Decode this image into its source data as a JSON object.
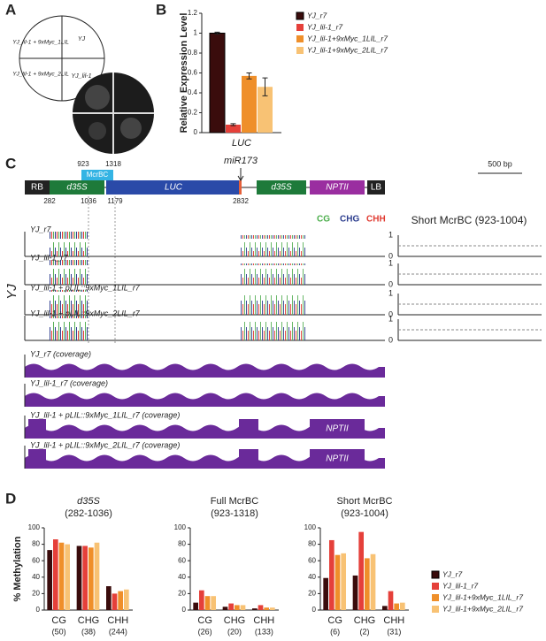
{
  "panels": [
    "A",
    "B",
    "C",
    "D"
  ],
  "panel_a": {
    "quadrants": [
      "YJ_lil-1 + 9xMyc_1LIL",
      "YJ",
      "YJ_lil-1 + 9xMyc_2LIL",
      "YJ_lil-1"
    ]
  },
  "panel_c": {
    "construct": {
      "elements": [
        "RB",
        "d35S",
        "LUC",
        "d35S",
        "NPTII",
        "LB"
      ],
      "mcrbc": "McrBC",
      "positions": [
        "923",
        "1318",
        "282",
        "1036",
        "1179",
        "2832"
      ],
      "mirna": "miR173",
      "scale": "500 bp"
    },
    "contexts": [
      "CG",
      "CHG",
      "CHH"
    ],
    "y_label": "YJ",
    "tracks": [
      "YJ_r7",
      "YJ_lil-1_r7",
      "YJ_lil-1 + pLIL::9xMyc_1LIL_r7",
      "YJ_lil-1 + pLIL::9xMyc_2LIL_r7"
    ],
    "coverage_tracks": [
      "YJ_r7 (coverage)",
      "YJ_lil-1_r7 (coverage)",
      "YJ_lil-1 + pLIL::9xMyc_1LIL_r7 (coverage)",
      "YJ_lil-1 + pLIL::9xMyc_2LIL_r7 (coverage)"
    ],
    "nptii": "NPTII",
    "short": {
      "title": "Short McrBC (923-1004)",
      "ticks": [
        "0",
        "1"
      ]
    }
  },
  "chart_data": [
    {
      "type": "bar",
      "y_label": "Relative Expression Level",
      "categories": [
        "LUC"
      ],
      "legend": "right",
      "ylim": [
        0,
        1.2
      ],
      "yticks": [
        0,
        0.2,
        0.4,
        0.6,
        0.8,
        1,
        1.2
      ],
      "series": [
        {
          "name": "YJ_r7",
          "color": "#3a0c0c",
          "values": [
            1.0
          ],
          "errors": [
            0.01
          ]
        },
        {
          "name": "YJ_lil-1_r7",
          "color": "#e5403a",
          "values": [
            0.08
          ],
          "errors": [
            0.01
          ]
        },
        {
          "name": "YJ_lil-1+9xMyc_1LIL_r7",
          "color": "#ef8f2a",
          "values": [
            0.57
          ],
          "errors": [
            0.03
          ]
        },
        {
          "name": "YJ_lil-1+9xMyc_2LIL_r7",
          "color": "#f8c274",
          "values": [
            0.46
          ],
          "errors": [
            0.09
          ]
        }
      ]
    },
    {
      "type": "bar",
      "title": "d35S",
      "subtitle": "(282-1036)",
      "y_label": "% Methylation",
      "categories": [
        "CG",
        "CHG",
        "CHH"
      ],
      "category_counts": [
        "(50)",
        "(38)",
        "(244)"
      ],
      "ylim": [
        0,
        100
      ],
      "yticks": [
        0,
        20,
        40,
        60,
        80,
        100
      ],
      "series": [
        {
          "name": "YJ_r7",
          "color": "#3a0c0c",
          "values": [
            73,
            78,
            29
          ]
        },
        {
          "name": "YJ_lil-1_r7",
          "color": "#e5403a",
          "values": [
            86,
            78,
            20
          ]
        },
        {
          "name": "YJ_lil-1+9xMyc_1LIL_r7",
          "color": "#ef8f2a",
          "values": [
            82,
            76,
            23
          ]
        },
        {
          "name": "YJ_lil-1+9xMyc_2LIL_r7",
          "color": "#f8c274",
          "values": [
            80,
            82,
            25
          ]
        }
      ]
    },
    {
      "type": "bar",
      "title": "Full McrBC",
      "subtitle": "(923-1318)",
      "categories": [
        "CG",
        "CHG",
        "CHH"
      ],
      "category_counts": [
        "(26)",
        "(20)",
        "(133)"
      ],
      "ylim": [
        0,
        100
      ],
      "yticks": [
        0,
        20,
        40,
        60,
        80,
        100
      ],
      "series": [
        {
          "name": "YJ_r7",
          "color": "#3a0c0c",
          "values": [
            9,
            4,
            2
          ]
        },
        {
          "name": "YJ_lil-1_r7",
          "color": "#e5403a",
          "values": [
            24,
            8,
            6
          ]
        },
        {
          "name": "YJ_lil-1+9xMyc_1LIL_r7",
          "color": "#ef8f2a",
          "values": [
            17,
            6,
            3
          ]
        },
        {
          "name": "YJ_lil-1+9xMyc_2LIL_r7",
          "color": "#f8c274",
          "values": [
            17,
            6,
            3
          ]
        }
      ]
    },
    {
      "type": "bar",
      "title": "Short McrBC",
      "subtitle": "(923-1004)",
      "legend": "right",
      "categories": [
        "CG",
        "CHG",
        "CHH"
      ],
      "category_counts": [
        "(6)",
        "(2)",
        "(31)"
      ],
      "ylim": [
        0,
        100
      ],
      "yticks": [
        0,
        20,
        40,
        60,
        80,
        100
      ],
      "series": [
        {
          "name": "YJ_r7",
          "color": "#3a0c0c",
          "values": [
            39,
            42,
            5
          ]
        },
        {
          "name": "YJ_lil-1_r7",
          "color": "#e5403a",
          "values": [
            85,
            95,
            23
          ]
        },
        {
          "name": "YJ_lil-1+9xMyc_1LIL_r7",
          "color": "#ef8f2a",
          "values": [
            67,
            63,
            8
          ]
        },
        {
          "name": "YJ_lil-1+9xMyc_2LIL_r7",
          "color": "#f8c274",
          "values": [
            69,
            68,
            9
          ]
        }
      ]
    }
  ]
}
